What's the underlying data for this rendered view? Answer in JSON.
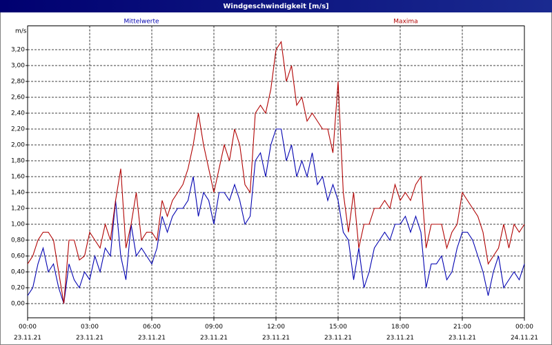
{
  "chart_data": {
    "type": "line",
    "title": "Windgeschwindigkeit [m/s]",
    "y_unit": "m/s",
    "x": [
      0,
      0.25,
      0.5,
      0.75,
      1,
      1.25,
      1.5,
      1.75,
      2,
      2.25,
      2.5,
      2.75,
      3,
      3.25,
      3.5,
      3.75,
      4,
      4.25,
      4.5,
      4.75,
      5,
      5.25,
      5.5,
      5.75,
      6,
      6.25,
      6.5,
      6.75,
      7,
      7.25,
      7.5,
      7.75,
      8,
      8.25,
      8.5,
      8.75,
      9,
      9.25,
      9.5,
      9.75,
      10,
      10.25,
      10.5,
      10.75,
      11,
      11.25,
      11.5,
      11.75,
      12,
      12.25,
      12.5,
      12.75,
      13,
      13.25,
      13.5,
      13.75,
      14,
      14.25,
      14.5,
      14.75,
      15,
      15.25,
      15.5,
      15.75,
      16,
      16.25,
      16.5,
      16.75,
      17,
      17.25,
      17.5,
      17.75,
      18,
      18.25,
      18.5,
      18.75,
      19,
      19.25,
      19.5,
      19.75,
      20,
      20.25,
      20.5,
      20.75,
      21,
      21.25,
      21.5,
      21.75,
      22,
      22.25,
      22.5,
      22.75,
      23,
      23.25,
      23.5,
      23.75,
      24
    ],
    "series": [
      {
        "name": "Mittelwerte",
        "color": "#0000b0",
        "values": [
          0.1,
          0.2,
          0.5,
          0.7,
          0.4,
          0.5,
          0.2,
          0.0,
          0.5,
          0.3,
          0.2,
          0.4,
          0.3,
          0.6,
          0.4,
          0.7,
          0.6,
          1.3,
          0.6,
          0.3,
          1.0,
          0.6,
          0.7,
          0.6,
          0.5,
          0.7,
          1.1,
          0.9,
          1.1,
          1.2,
          1.2,
          1.3,
          1.6,
          1.1,
          1.4,
          1.3,
          1.0,
          1.4,
          1.4,
          1.3,
          1.5,
          1.3,
          1.0,
          1.1,
          1.8,
          1.9,
          1.6,
          2.0,
          2.2,
          2.2,
          1.8,
          2.0,
          1.6,
          1.8,
          1.6,
          1.9,
          1.5,
          1.6,
          1.3,
          1.5,
          1.3,
          0.9,
          0.8,
          0.3,
          0.7,
          0.2,
          0.4,
          0.7,
          0.8,
          0.9,
          0.8,
          1.0,
          1.0,
          1.1,
          0.9,
          1.1,
          0.9,
          0.2,
          0.5,
          0.5,
          0.6,
          0.3,
          0.4,
          0.7,
          0.9,
          0.9,
          0.8,
          0.6,
          0.4,
          0.1,
          0.4,
          0.6,
          0.2,
          0.3,
          0.4,
          0.3,
          0.5
        ]
      },
      {
        "name": "Maxima",
        "color": "#b00000",
        "values": [
          0.5,
          0.6,
          0.8,
          0.9,
          0.9,
          0.8,
          0.4,
          0.0,
          0.8,
          0.8,
          0.55,
          0.6,
          0.9,
          0.8,
          0.7,
          1.0,
          0.8,
          1.3,
          1.7,
          0.7,
          1.0,
          1.4,
          0.8,
          0.9,
          0.9,
          0.8,
          1.3,
          1.1,
          1.3,
          1.4,
          1.5,
          1.7,
          2.0,
          2.4,
          2.0,
          1.7,
          1.4,
          1.7,
          2.0,
          1.8,
          2.2,
          2.0,
          1.5,
          1.4,
          2.4,
          2.5,
          2.4,
          2.7,
          3.2,
          3.3,
          2.8,
          3.0,
          2.5,
          2.6,
          2.3,
          2.4,
          2.3,
          2.2,
          2.2,
          1.9,
          2.8,
          1.4,
          0.9,
          1.4,
          0.7,
          1.0,
          1.0,
          1.2,
          1.2,
          1.3,
          1.2,
          1.5,
          1.3,
          1.4,
          1.3,
          1.5,
          1.6,
          0.7,
          1.0,
          1.0,
          1.0,
          0.7,
          0.9,
          1.0,
          1.4,
          1.3,
          1.2,
          1.1,
          0.9,
          0.5,
          0.6,
          0.7,
          1.0,
          0.7,
          1.0,
          0.9,
          1.0
        ]
      }
    ],
    "xlim": [
      0,
      24
    ],
    "xticks": [
      {
        "value": 0,
        "label": "00:00"
      },
      {
        "value": 3,
        "label": "03:00"
      },
      {
        "value": 6,
        "label": "06:00"
      },
      {
        "value": 9,
        "label": "09:00"
      },
      {
        "value": 12,
        "label": "12:00"
      },
      {
        "value": 15,
        "label": "15:00"
      },
      {
        "value": 18,
        "label": "18:00"
      },
      {
        "value": 21,
        "label": "21:00"
      },
      {
        "value": 24,
        "label": "00:00"
      }
    ],
    "xtick_dates": [
      "23.11.21",
      "23.11.21",
      "23.11.21",
      "23.11.21",
      "23.11.21",
      "23.11.21",
      "23.11.21",
      "23.11.21",
      "24.11.21"
    ],
    "ylim": [
      -0.18,
      3.5
    ],
    "yticks": [
      {
        "value": 0,
        "label": "0,00"
      },
      {
        "value": 0.2,
        "label": "0,20"
      },
      {
        "value": 0.4,
        "label": "0,40"
      },
      {
        "value": 0.6,
        "label": "0,60"
      },
      {
        "value": 0.8,
        "label": "0,80"
      },
      {
        "value": 1,
        "label": "1,00"
      },
      {
        "value": 1.2,
        "label": "1,20"
      },
      {
        "value": 1.4,
        "label": "1,40"
      },
      {
        "value": 1.6,
        "label": "1,60"
      },
      {
        "value": 1.8,
        "label": "1,80"
      },
      {
        "value": 2,
        "label": "2,00"
      },
      {
        "value": 2.2,
        "label": "2,20"
      },
      {
        "value": 2.4,
        "label": "2,40"
      },
      {
        "value": 2.6,
        "label": "2,60"
      },
      {
        "value": 2.8,
        "label": "2,80"
      },
      {
        "value": 3,
        "label": "3,00"
      },
      {
        "value": 3.2,
        "label": "3,20"
      }
    ],
    "grid": true
  }
}
